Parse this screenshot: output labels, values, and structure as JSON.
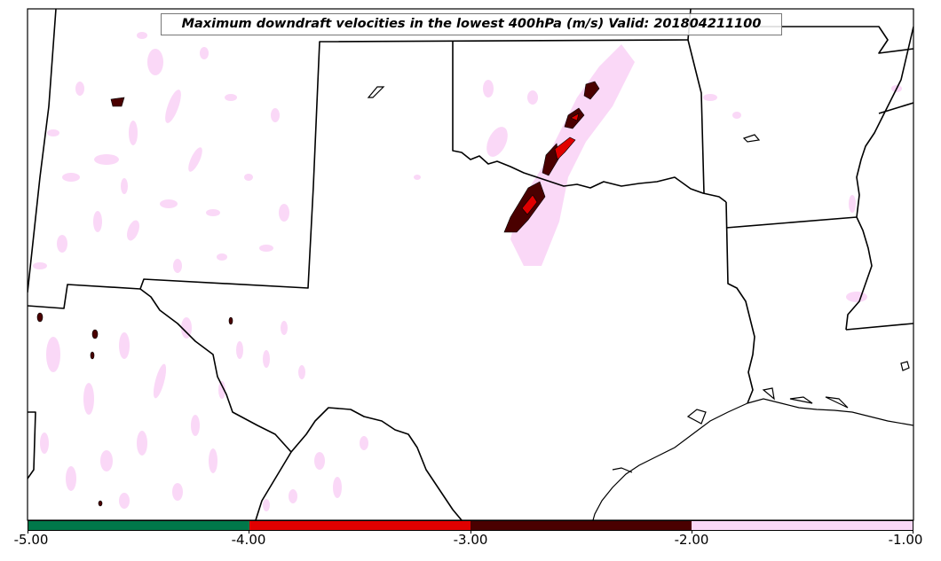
{
  "title": "Maximum downdraft velocities in the lowest 400hPa (m/s) Valid: 201804211100",
  "colorbar": {
    "segments": [
      {
        "from": -5.0,
        "to": -4.0,
        "color": "#00784a"
      },
      {
        "from": -4.0,
        "to": -3.0,
        "color": "#e00000"
      },
      {
        "from": -3.0,
        "to": -2.0,
        "color": "#4a0000"
      },
      {
        "from": -2.0,
        "to": -1.0,
        "color": "#fad8f7"
      }
    ],
    "tick_labels": [
      "-5.00",
      "-4.00",
      "-3.00",
      "-2.00",
      "-1.00"
    ]
  },
  "colors": {
    "light_pink": "#fad8f7",
    "dark_red": "#4a0000",
    "red": "#e00000",
    "green": "#00784a",
    "boundary": "#000000"
  }
}
